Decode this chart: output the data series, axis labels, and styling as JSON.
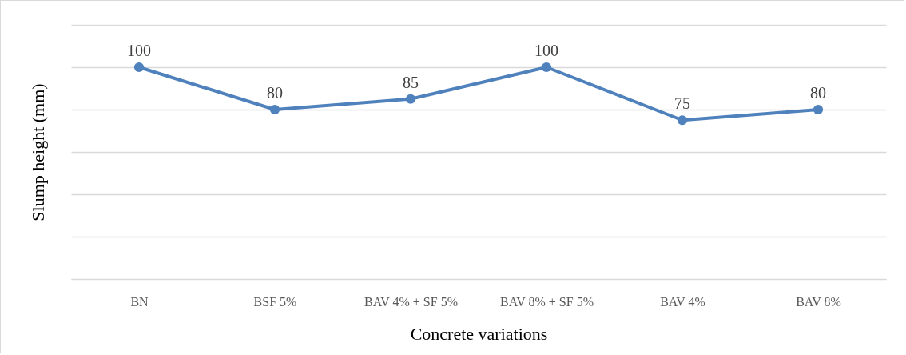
{
  "chart_data": {
    "type": "line",
    "xlabel": "Concrete variations",
    "ylabel": "Slump height (mm)",
    "categories": [
      "BN",
      "BSF 5%",
      "BAV 4% + SF 5%",
      "BAV 8% + SF 5%",
      "BAV 4%",
      "BAV 8%"
    ],
    "series": [
      {
        "color": "#4f81bd",
        "values": [
          100,
          80,
          85,
          100,
          75,
          80
        ]
      }
    ],
    "ylim": [
      0,
      120
    ],
    "yticks": [
      {
        "value": 0,
        "label": null
      },
      {
        "value": 20,
        "label": null
      },
      {
        "value": 40,
        "label": null
      },
      {
        "value": 60,
        "label": null
      },
      {
        "value": 80,
        "label": null
      },
      {
        "value": 100,
        "label": null
      },
      {
        "value": 120,
        "label": null
      }
    ],
    "grid": "y",
    "tick_labels": "x",
    "data_labels": true,
    "marker": "circle",
    "line_style": "solid",
    "legend": false
  }
}
